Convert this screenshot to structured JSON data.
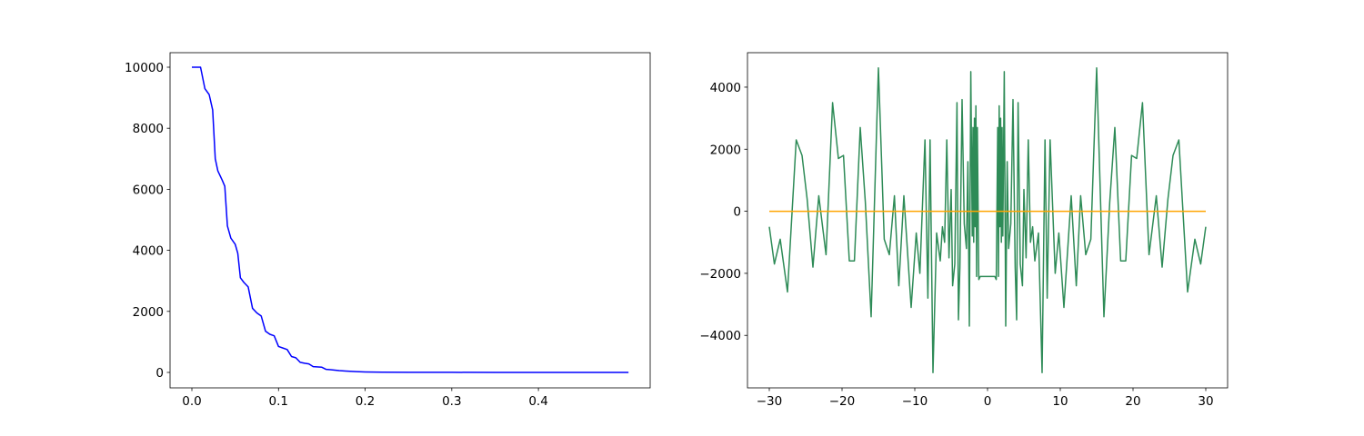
{
  "chart_data": [
    {
      "type": "line",
      "x": [
        0,
        0.005,
        0.01,
        0.015,
        0.02,
        0.024,
        0.027,
        0.03,
        0.035,
        0.038,
        0.041,
        0.045,
        0.05,
        0.053,
        0.056,
        0.06,
        0.065,
        0.07,
        0.075,
        0.08,
        0.085,
        0.09,
        0.095,
        0.1,
        0.105,
        0.11,
        0.115,
        0.12,
        0.125,
        0.13,
        0.135,
        0.14,
        0.15,
        0.155,
        0.16,
        0.17,
        0.18,
        0.19,
        0.2,
        0.22,
        0.25,
        0.3,
        0.35,
        0.4,
        0.45,
        0.504
      ],
      "series": [
        {
          "color": "#0000ff",
          "values": [
            10000,
            10000,
            10000,
            9300,
            9100,
            8600,
            7000,
            6600,
            6300,
            6100,
            4800,
            4400,
            4200,
            3900,
            3100,
            2950,
            2800,
            2100,
            1950,
            1850,
            1350,
            1250,
            1200,
            850,
            800,
            750,
            520,
            480,
            330,
            300,
            280,
            190,
            170,
            100,
            90,
            60,
            40,
            25,
            15,
            8,
            4,
            2,
            1,
            0.5,
            0.2,
            0.1
          ]
        }
      ],
      "xlim": [
        -0.0252,
        0.529
      ],
      "ylim": [
        -506,
        10476
      ],
      "xticks": [
        {
          "value": 0,
          "label": "0.0"
        },
        0.1,
        0.2,
        0.3,
        0.4
      ],
      "yticks": [
        0,
        2000,
        4000,
        6000,
        8000,
        10000
      ]
    },
    {
      "type": "line",
      "series": [
        {
          "color": "#2e8b57",
          "x": [
            -30,
            -29.3,
            -28.5,
            -27.5,
            -26.3,
            -25.5,
            -24.8,
            -24,
            -23.2,
            -22.2,
            -21.3,
            -20.5,
            -19.8,
            -19,
            -18.3,
            -17.5,
            -16.8,
            -16,
            -15,
            -14.2,
            -13.5,
            -12.8,
            -12.2,
            -11.5,
            -10.5,
            -9.8,
            -9.3,
            -8.6,
            -8.2,
            -7.9,
            -7.5,
            -7,
            -6.5,
            -6.2,
            -5.9,
            -5.6,
            -5.3,
            -5,
            -4.8,
            -4.5,
            -4.2,
            -4,
            -3.8,
            -3.5,
            -3.2,
            -2.9,
            -2.7,
            -2.5,
            -2.3,
            -2.1,
            -2,
            -1.9,
            -1.8,
            -1.7,
            -1.6,
            -1.5,
            -1.4,
            -1.2,
            -1,
            -0.5,
            0.5,
            1,
            1.2,
            1.4,
            1.5,
            1.6,
            1.7,
            1.8,
            1.9,
            2,
            2.1,
            2.3,
            2.5,
            2.7,
            2.9,
            3.2,
            3.5,
            3.8,
            4,
            4.2,
            4.5,
            4.8,
            5,
            5.3,
            5.6,
            5.9,
            6.2,
            6.5,
            7,
            7.5,
            7.9,
            8.2,
            8.6,
            9.3,
            9.8,
            10.5,
            11.5,
            12.2,
            12.8,
            13.5,
            14.2,
            15,
            16,
            16.8,
            17.5,
            18.3,
            19,
            19.8,
            20.5,
            21.3,
            22.2,
            23.2,
            24,
            24.8,
            25.5,
            26.3,
            27.5,
            28.5,
            29.3,
            30
          ],
          "values": [
            -500,
            -1700,
            -900,
            -2600,
            2300,
            1800,
            400,
            -1800,
            500,
            -1400,
            3500,
            1700,
            1800,
            -1600,
            -1600,
            2700,
            300,
            -3400,
            4620,
            -900,
            -1400,
            500,
            -2400,
            500,
            -3100,
            -700,
            -2000,
            2300,
            -2800,
            2300,
            -5200,
            -700,
            -1600,
            -500,
            -1000,
            2300,
            -1500,
            700,
            -2400,
            -1700,
            3500,
            -3500,
            -1800,
            3600,
            -400,
            -1200,
            1600,
            -3700,
            4500,
            -800,
            2700,
            -1000,
            3000,
            -500,
            3400,
            -2100,
            2700,
            -2200,
            -2100,
            -2100,
            -2100,
            -2100,
            -2200,
            2700,
            -2100,
            3400,
            -500,
            3000,
            -1000,
            2700,
            -800,
            4500,
            -3700,
            1600,
            -1200,
            -400,
            3600,
            -1800,
            -3500,
            3500,
            -1700,
            -2400,
            700,
            -1500,
            2300,
            -1000,
            -500,
            -1600,
            -700,
            -5200,
            2300,
            -2800,
            2300,
            -2000,
            -700,
            -3100,
            500,
            -2400,
            500,
            -1400,
            -900,
            4620,
            -3400,
            300,
            2700,
            -1600,
            -1600,
            1800,
            1700,
            3500,
            -1400,
            500,
            -1800,
            400,
            1800,
            2300,
            -2600,
            -900,
            -1700,
            -500
          ]
        },
        {
          "color": "#ffa500",
          "x": [
            -30,
            30
          ],
          "values": [
            0,
            0
          ]
        }
      ],
      "xlim": [
        -33,
        33
      ],
      "ylim": [
        -5691,
        5111
      ],
      "xticks": [
        {
          "value": -30,
          "label": "−30"
        },
        {
          "value": -20,
          "label": "−20"
        },
        {
          "value": -10,
          "label": "−10"
        },
        0,
        10,
        20,
        30
      ],
      "yticks": [
        {
          "value": -4000,
          "label": "−4000"
        },
        {
          "value": -2000,
          "label": "−2000"
        },
        0,
        2000,
        4000
      ]
    }
  ]
}
